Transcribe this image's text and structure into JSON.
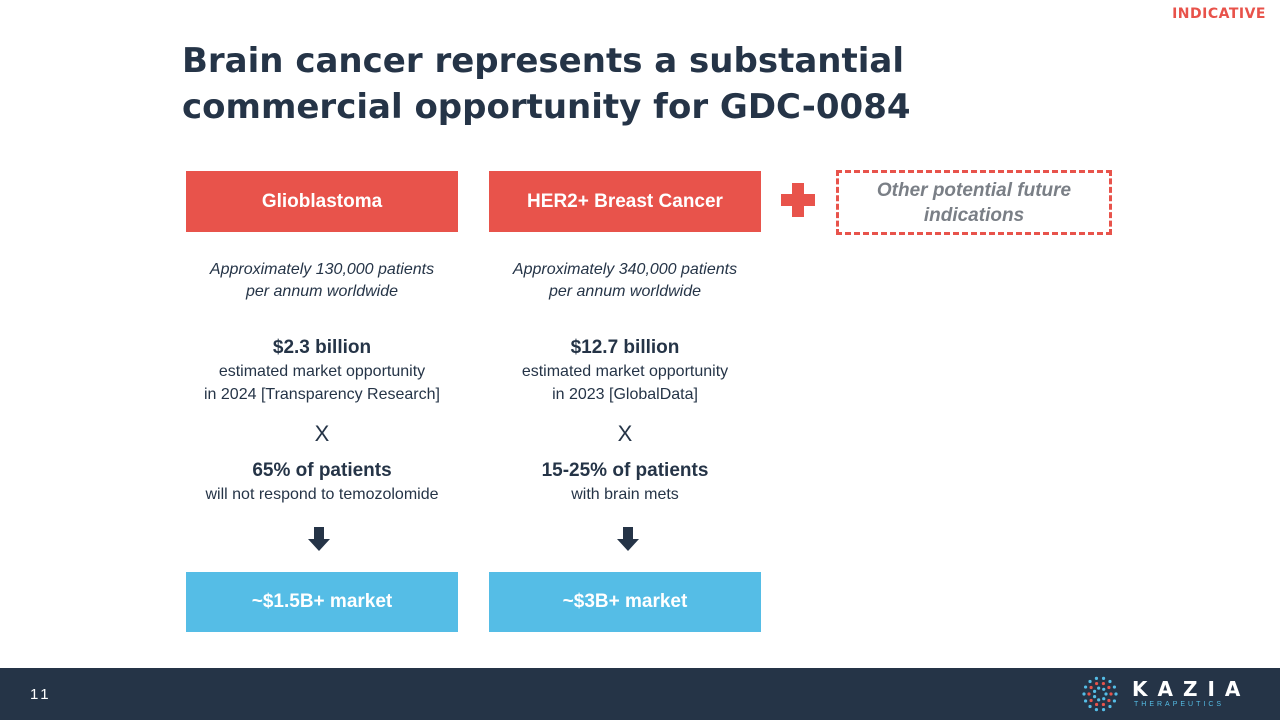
{
  "badge": "INDICATIVE",
  "title": "Brain cancer represents a substantial commercial opportunity for GDC-0084",
  "columns": [
    {
      "header": "Glioblastoma",
      "patients_line1": "Approximately 130,000 patients",
      "patients_line2": "per annum worldwide",
      "market_value": "$2.3 billion",
      "market_line1": "estimated market opportunity",
      "market_line2": "in 2024 [Transparency Research]",
      "operator": "X",
      "share_value": "65% of patients",
      "share_desc": "will not respond to temozolomide",
      "result": "~$1.5B+ market"
    },
    {
      "header": "HER2+ Breast Cancer",
      "patients_line1": "Approximately 340,000 patients",
      "patients_line2": "per annum worldwide",
      "market_value": "$12.7 billion",
      "market_line1": "estimated market opportunity",
      "market_line2": "in 2023 [GlobalData]",
      "operator": "X",
      "share_value": "15-25% of patients",
      "share_desc": "with brain mets",
      "result": "~$3B+ market"
    }
  ],
  "future": {
    "line1": "Other potential future",
    "line2": "indications"
  },
  "footer": {
    "page_number": "11",
    "logo_name": "KAZIA",
    "logo_tagline": "THERAPEUTICS"
  },
  "colors": {
    "accent_red": "#e8534b",
    "accent_blue": "#55bde6",
    "navy": "#253447"
  }
}
